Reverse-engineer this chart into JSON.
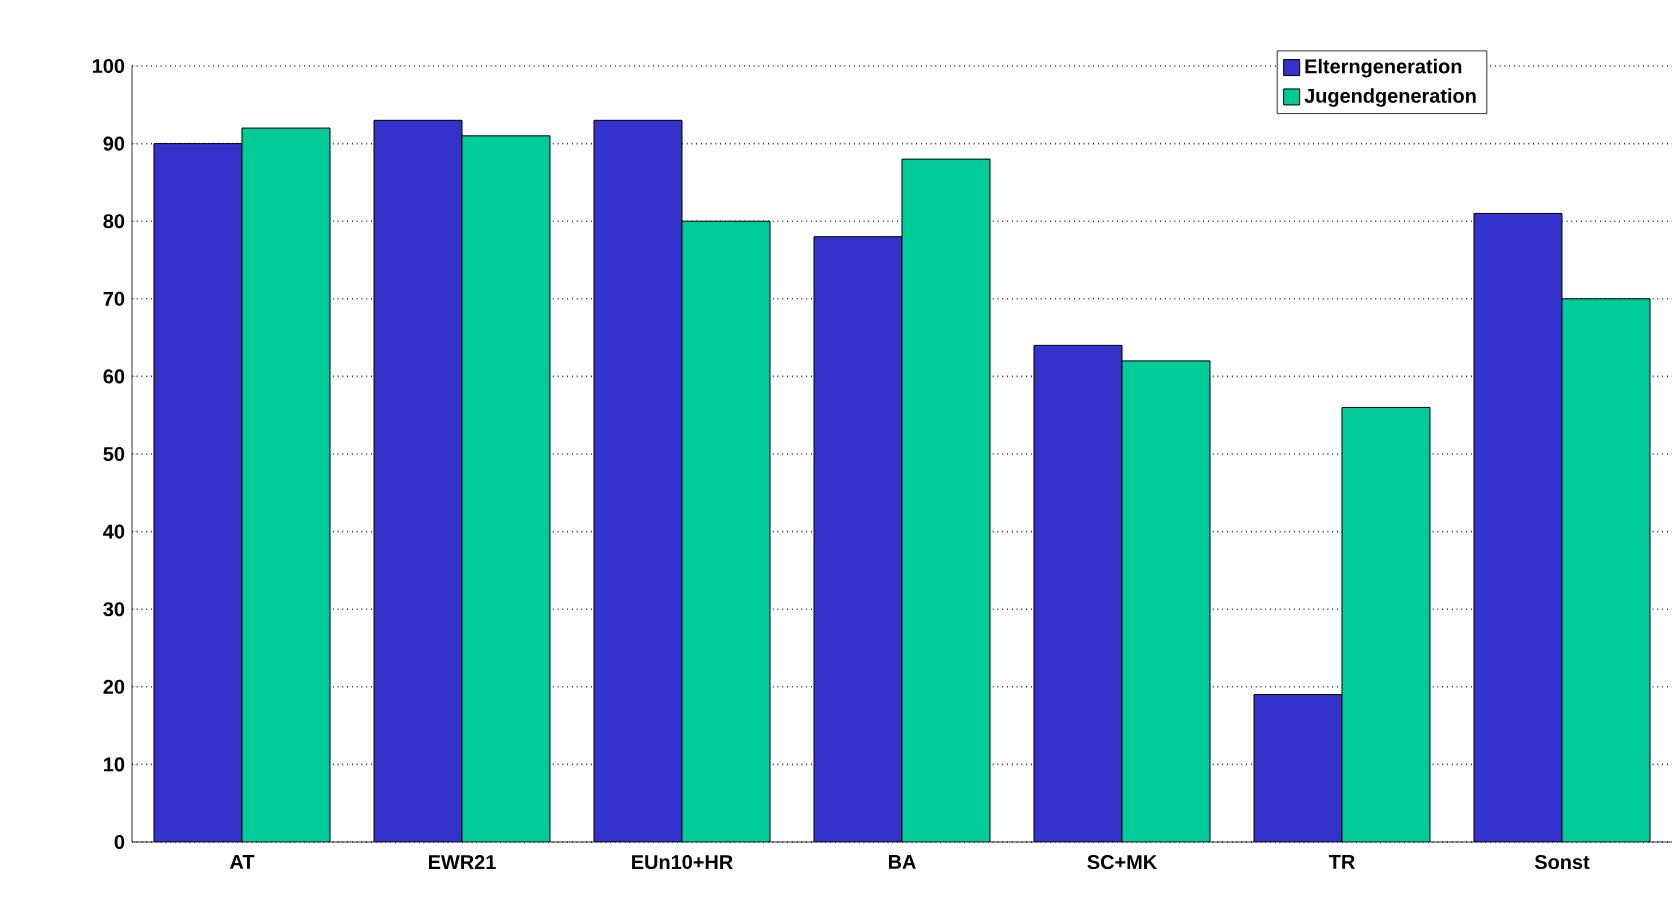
{
  "chart_data": {
    "type": "bar",
    "categories": [
      "AT",
      "EWR21",
      "EUn10+HR",
      "BA",
      "SC+MK",
      "TR",
      "Sonst"
    ],
    "series": [
      {
        "name": "Elterngeneration",
        "color": "#3333cc",
        "values": [
          90,
          93,
          93,
          78,
          64,
          19,
          81
        ]
      },
      {
        "name": "Jugendgeneration",
        "color": "#00cc99",
        "values": [
          92,
          91,
          80,
          88,
          62,
          56,
          70
        ]
      }
    ],
    "ylim": [
      0,
      100
    ],
    "yticks": [
      0,
      10,
      20,
      30,
      40,
      50,
      60,
      70,
      80,
      90,
      100
    ],
    "grid": "y",
    "legend": "top right"
  }
}
